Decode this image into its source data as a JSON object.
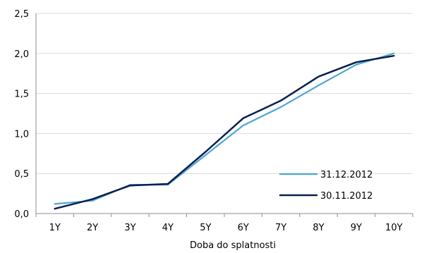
{
  "chart_data": {
    "type": "line",
    "categories": [
      "1Y",
      "2Y",
      "3Y",
      "4Y",
      "5Y",
      "6Y",
      "7Y",
      "8Y",
      "9Y",
      "10Y"
    ],
    "xlabel": "Doba do splatnosti",
    "ylabel": "",
    "ylim": [
      0,
      2.5
    ],
    "yticks": [
      "0,0",
      "0,5",
      "1,0",
      "1,5",
      "2,0",
      "2,5"
    ],
    "grid": "horizontal",
    "legend_position": "bottom-right",
    "series": [
      {
        "name": "31.12.2012",
        "color": "#4da6d6",
        "values": [
          0.12,
          0.16,
          0.36,
          0.36,
          0.73,
          1.1,
          1.33,
          1.6,
          1.86,
          2.0
        ]
      },
      {
        "name": "30.11.2012",
        "color": "#0a1f4d",
        "values": [
          0.06,
          0.18,
          0.35,
          0.37,
          0.77,
          1.19,
          1.41,
          1.71,
          1.89,
          1.97
        ]
      }
    ]
  }
}
